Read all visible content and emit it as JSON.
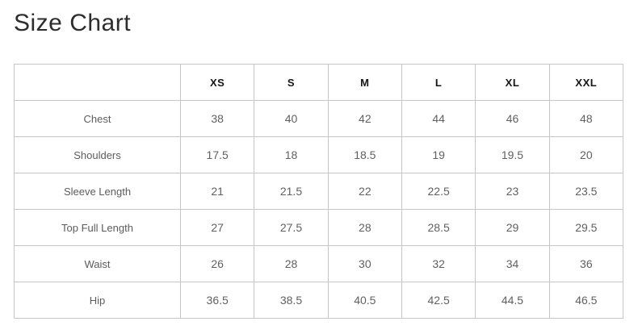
{
  "title": "Size Chart",
  "table": {
    "columns": [
      "",
      "XS",
      "S",
      "M",
      "L",
      "XL",
      "XXL"
    ],
    "rows": [
      {
        "label": "Chest",
        "values": [
          "38",
          "40",
          "42",
          "44",
          "46",
          "48"
        ]
      },
      {
        "label": "Shoulders",
        "values": [
          "17.5",
          "18",
          "18.5",
          "19",
          "19.5",
          "20"
        ]
      },
      {
        "label": "Sleeve Length",
        "values": [
          "21",
          "21.5",
          "22",
          "22.5",
          "23",
          "23.5"
        ]
      },
      {
        "label": "Top Full Length",
        "values": [
          "27",
          "27.5",
          "28",
          "28.5",
          "29",
          "29.5"
        ]
      },
      {
        "label": "Waist",
        "values": [
          "26",
          "28",
          "30",
          "32",
          "34",
          "36"
        ]
      },
      {
        "label": "Hip",
        "values": [
          "36.5",
          "38.5",
          "40.5",
          "42.5",
          "44.5",
          "46.5"
        ]
      }
    ]
  },
  "colors": {
    "background": "#ffffff",
    "title_text": "#2d2d2d",
    "header_text": "#151515",
    "cell_text": "#606060",
    "border": "#c6c6c6"
  }
}
